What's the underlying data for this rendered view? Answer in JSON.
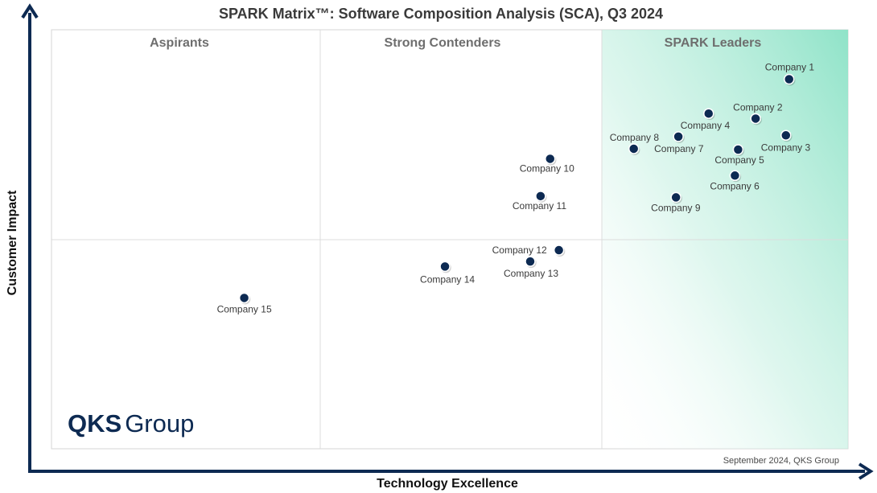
{
  "chart_data": {
    "type": "scatter",
    "title": "SPARK Matrix™: Software Composition Analysis (SCA), Q3 2024",
    "xlabel": "Technology Excellence",
    "ylabel": "Customer Impact",
    "quadrants": [
      "Aspirants",
      "Strong Contenders",
      "SPARK Leaders"
    ],
    "points": [
      {
        "label": "Company 1",
        "x": 0.926,
        "y": 0.882
      },
      {
        "label": "Company 2",
        "x": 0.884,
        "y": 0.788
      },
      {
        "label": "Company 3",
        "x": 0.922,
        "y": 0.748
      },
      {
        "label": "Company 4",
        "x": 0.825,
        "y": 0.8
      },
      {
        "label": "Company 5",
        "x": 0.862,
        "y": 0.714
      },
      {
        "label": "Company 6",
        "x": 0.858,
        "y": 0.652
      },
      {
        "label": "Company 7",
        "x": 0.787,
        "y": 0.745
      },
      {
        "label": "Company 8",
        "x": 0.731,
        "y": 0.716
      },
      {
        "label": "Company 9",
        "x": 0.784,
        "y": 0.6
      },
      {
        "label": "Company 10",
        "x": 0.626,
        "y": 0.692
      },
      {
        "label": "Company 11",
        "x": 0.614,
        "y": 0.603
      },
      {
        "label": "Company 12",
        "x": 0.637,
        "y": 0.474
      },
      {
        "label": "Company 13",
        "x": 0.601,
        "y": 0.447
      },
      {
        "label": "Company 14",
        "x": 0.494,
        "y": 0.435
      },
      {
        "label": "Company 15",
        "x": 0.242,
        "y": 0.36
      }
    ]
  },
  "footnote": "September 2024, QKS Group",
  "logo": {
    "bold": "QKS",
    "regular": "Group"
  },
  "colors": {
    "point": "#0d2a52",
    "axis": "#0d2a52",
    "leader_gradient": "#8fe3c8"
  }
}
